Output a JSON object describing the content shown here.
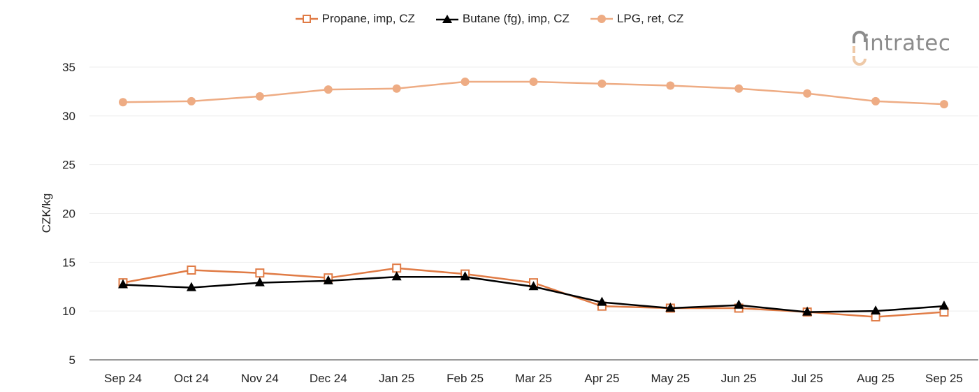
{
  "chart_data": {
    "type": "line",
    "title": "",
    "xlabel": "",
    "ylabel": "CZK/kg",
    "ylim": [
      5,
      35
    ],
    "yticks": [
      5,
      10,
      15,
      20,
      25,
      30,
      35
    ],
    "grid": true,
    "legend_position": "top-center",
    "categories": [
      "Sep 24",
      "Oct 24",
      "Nov 24",
      "Dec 24",
      "Jan 25",
      "Feb 25",
      "Mar 25",
      "Apr 25",
      "May 25",
      "Jun 25",
      "Jul 25",
      "Aug 25",
      "Sep 25"
    ],
    "series": [
      {
        "name": "Propane, imp, CZ",
        "color": "#e07b45",
        "marker": "square-open",
        "values": [
          12.9,
          14.2,
          13.9,
          13.4,
          14.4,
          13.8,
          12.9,
          10.5,
          10.3,
          10.3,
          9.9,
          9.4,
          9.9
        ]
      },
      {
        "name": "Butane (fg), imp, CZ",
        "color": "#000000",
        "marker": "triangle",
        "values": [
          12.7,
          12.4,
          12.9,
          13.1,
          13.5,
          13.5,
          12.5,
          10.9,
          10.3,
          10.6,
          9.9,
          10.0,
          10.5
        ]
      },
      {
        "name": "LPG, ret, CZ",
        "color": "#eeac84",
        "marker": "circle",
        "values": [
          31.4,
          31.5,
          32.0,
          32.7,
          32.8,
          33.5,
          33.5,
          33.3,
          33.1,
          32.8,
          32.3,
          31.5,
          31.2
        ]
      }
    ]
  },
  "logo": {
    "text": "intratec"
  }
}
